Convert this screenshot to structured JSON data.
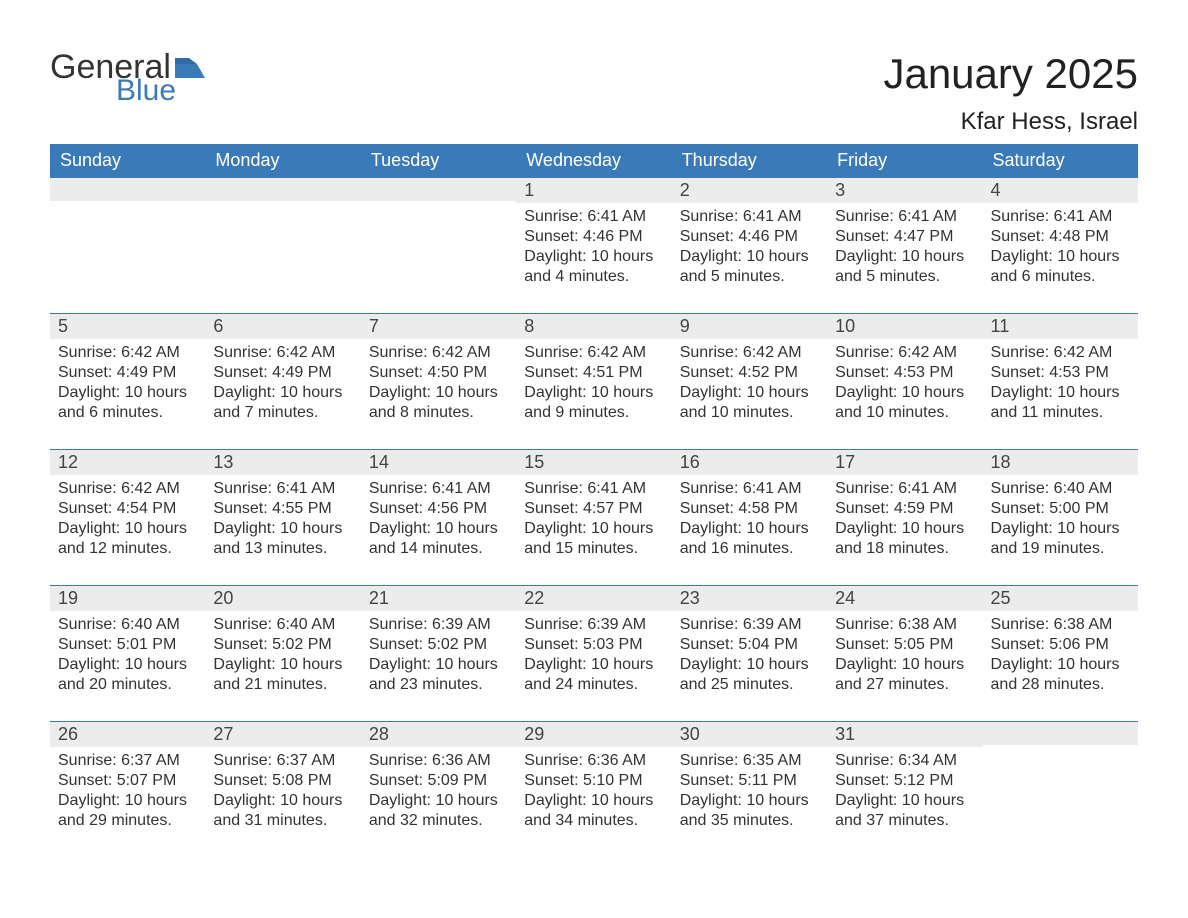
{
  "brand": {
    "general": "General",
    "blue": "Blue"
  },
  "title": "January 2025",
  "location": "Kfar Hess, Israel",
  "colors": {
    "header_bg": "#3b7ab8",
    "header_text": "#ffffff",
    "day_bar_bg": "#ececec",
    "day_bar_border": "#3b7ab8",
    "body_text": "#333333",
    "page_bg": "#ffffff"
  },
  "typography": {
    "title_fontsize": 42,
    "location_fontsize": 24,
    "header_fontsize": 18,
    "daynum_fontsize": 18,
    "body_fontsize": 16
  },
  "weekdays": [
    "Sunday",
    "Monday",
    "Tuesday",
    "Wednesday",
    "Thursday",
    "Friday",
    "Saturday"
  ],
  "weeks": [
    [
      null,
      null,
      null,
      {
        "n": "1",
        "sunrise": "Sunrise: 6:41 AM",
        "sunset": "Sunset: 4:46 PM",
        "daylight": "Daylight: 10 hours and 4 minutes."
      },
      {
        "n": "2",
        "sunrise": "Sunrise: 6:41 AM",
        "sunset": "Sunset: 4:46 PM",
        "daylight": "Daylight: 10 hours and 5 minutes."
      },
      {
        "n": "3",
        "sunrise": "Sunrise: 6:41 AM",
        "sunset": "Sunset: 4:47 PM",
        "daylight": "Daylight: 10 hours and 5 minutes."
      },
      {
        "n": "4",
        "sunrise": "Sunrise: 6:41 AM",
        "sunset": "Sunset: 4:48 PM",
        "daylight": "Daylight: 10 hours and 6 minutes."
      }
    ],
    [
      {
        "n": "5",
        "sunrise": "Sunrise: 6:42 AM",
        "sunset": "Sunset: 4:49 PM",
        "daylight": "Daylight: 10 hours and 6 minutes."
      },
      {
        "n": "6",
        "sunrise": "Sunrise: 6:42 AM",
        "sunset": "Sunset: 4:49 PM",
        "daylight": "Daylight: 10 hours and 7 minutes."
      },
      {
        "n": "7",
        "sunrise": "Sunrise: 6:42 AM",
        "sunset": "Sunset: 4:50 PM",
        "daylight": "Daylight: 10 hours and 8 minutes."
      },
      {
        "n": "8",
        "sunrise": "Sunrise: 6:42 AM",
        "sunset": "Sunset: 4:51 PM",
        "daylight": "Daylight: 10 hours and 9 minutes."
      },
      {
        "n": "9",
        "sunrise": "Sunrise: 6:42 AM",
        "sunset": "Sunset: 4:52 PM",
        "daylight": "Daylight: 10 hours and 10 minutes."
      },
      {
        "n": "10",
        "sunrise": "Sunrise: 6:42 AM",
        "sunset": "Sunset: 4:53 PM",
        "daylight": "Daylight: 10 hours and 10 minutes."
      },
      {
        "n": "11",
        "sunrise": "Sunrise: 6:42 AM",
        "sunset": "Sunset: 4:53 PM",
        "daylight": "Daylight: 10 hours and 11 minutes."
      }
    ],
    [
      {
        "n": "12",
        "sunrise": "Sunrise: 6:42 AM",
        "sunset": "Sunset: 4:54 PM",
        "daylight": "Daylight: 10 hours and 12 minutes."
      },
      {
        "n": "13",
        "sunrise": "Sunrise: 6:41 AM",
        "sunset": "Sunset: 4:55 PM",
        "daylight": "Daylight: 10 hours and 13 minutes."
      },
      {
        "n": "14",
        "sunrise": "Sunrise: 6:41 AM",
        "sunset": "Sunset: 4:56 PM",
        "daylight": "Daylight: 10 hours and 14 minutes."
      },
      {
        "n": "15",
        "sunrise": "Sunrise: 6:41 AM",
        "sunset": "Sunset: 4:57 PM",
        "daylight": "Daylight: 10 hours and 15 minutes."
      },
      {
        "n": "16",
        "sunrise": "Sunrise: 6:41 AM",
        "sunset": "Sunset: 4:58 PM",
        "daylight": "Daylight: 10 hours and 16 minutes."
      },
      {
        "n": "17",
        "sunrise": "Sunrise: 6:41 AM",
        "sunset": "Sunset: 4:59 PM",
        "daylight": "Daylight: 10 hours and 18 minutes."
      },
      {
        "n": "18",
        "sunrise": "Sunrise: 6:40 AM",
        "sunset": "Sunset: 5:00 PM",
        "daylight": "Daylight: 10 hours and 19 minutes."
      }
    ],
    [
      {
        "n": "19",
        "sunrise": "Sunrise: 6:40 AM",
        "sunset": "Sunset: 5:01 PM",
        "daylight": "Daylight: 10 hours and 20 minutes."
      },
      {
        "n": "20",
        "sunrise": "Sunrise: 6:40 AM",
        "sunset": "Sunset: 5:02 PM",
        "daylight": "Daylight: 10 hours and 21 minutes."
      },
      {
        "n": "21",
        "sunrise": "Sunrise: 6:39 AM",
        "sunset": "Sunset: 5:02 PM",
        "daylight": "Daylight: 10 hours and 23 minutes."
      },
      {
        "n": "22",
        "sunrise": "Sunrise: 6:39 AM",
        "sunset": "Sunset: 5:03 PM",
        "daylight": "Daylight: 10 hours and 24 minutes."
      },
      {
        "n": "23",
        "sunrise": "Sunrise: 6:39 AM",
        "sunset": "Sunset: 5:04 PM",
        "daylight": "Daylight: 10 hours and 25 minutes."
      },
      {
        "n": "24",
        "sunrise": "Sunrise: 6:38 AM",
        "sunset": "Sunset: 5:05 PM",
        "daylight": "Daylight: 10 hours and 27 minutes."
      },
      {
        "n": "25",
        "sunrise": "Sunrise: 6:38 AM",
        "sunset": "Sunset: 5:06 PM",
        "daylight": "Daylight: 10 hours and 28 minutes."
      }
    ],
    [
      {
        "n": "26",
        "sunrise": "Sunrise: 6:37 AM",
        "sunset": "Sunset: 5:07 PM",
        "daylight": "Daylight: 10 hours and 29 minutes."
      },
      {
        "n": "27",
        "sunrise": "Sunrise: 6:37 AM",
        "sunset": "Sunset: 5:08 PM",
        "daylight": "Daylight: 10 hours and 31 minutes."
      },
      {
        "n": "28",
        "sunrise": "Sunrise: 6:36 AM",
        "sunset": "Sunset: 5:09 PM",
        "daylight": "Daylight: 10 hours and 32 minutes."
      },
      {
        "n": "29",
        "sunrise": "Sunrise: 6:36 AM",
        "sunset": "Sunset: 5:10 PM",
        "daylight": "Daylight: 10 hours and 34 minutes."
      },
      {
        "n": "30",
        "sunrise": "Sunrise: 6:35 AM",
        "sunset": "Sunset: 5:11 PM",
        "daylight": "Daylight: 10 hours and 35 minutes."
      },
      {
        "n": "31",
        "sunrise": "Sunrise: 6:34 AM",
        "sunset": "Sunset: 5:12 PM",
        "daylight": "Daylight: 10 hours and 37 minutes."
      },
      null
    ]
  ]
}
